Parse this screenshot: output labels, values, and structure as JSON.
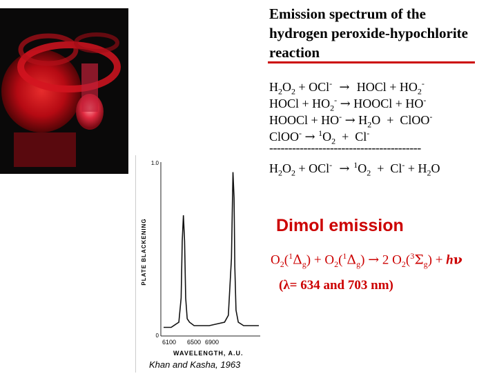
{
  "title": {
    "line1": "Emission spectrum of the",
    "line2": "hydrogen peroxide-hypochlorite",
    "line3": "reaction"
  },
  "reactions": {
    "r1_left": "H2O2 + OCl-",
    "r1_right": "HOCl + HO2-",
    "r2_left": "HOCl + HO2-",
    "r2_right": "HOOCl + HO-",
    "r3_left": "HOOCl + HO-",
    "r3_right": "H2O + ClOO-",
    "r4_left": "ClOO-",
    "r4_right": "1O2 + Cl-",
    "divider": "----------------------------------------",
    "net_left": "H2O2 + OCl-",
    "net_right": "1O2 + Cl- + H2O"
  },
  "dimol": {
    "heading": "Dimol emission",
    "equation": "O2(1Δg) + O2(1Δg) → 2 O2(3Σg) + hν",
    "wavelength": "(λ= 634 and 703 nm)"
  },
  "credit": "Khan and Kasha, 1963",
  "chart_data": {
    "type": "line",
    "xlabel": "WAVELENGTH, A.U.",
    "ylabel": "PLATE BLACKENING",
    "x_ticks": [
      "6100",
      "6500",
      "6900"
    ],
    "y_ticks": [
      "0",
      "1.0"
    ],
    "series": [
      {
        "x": [
          6100,
          6200,
          6300,
          6330,
          6345,
          6360,
          6375,
          6390,
          6410,
          6440,
          6500,
          6600,
          6700,
          6800,
          6900,
          6950,
          6990,
          7010,
          7025,
          7035,
          7050,
          7080,
          7150,
          7250,
          7350
        ],
        "values": [
          0.05,
          0.05,
          0.08,
          0.22,
          0.55,
          0.7,
          0.55,
          0.22,
          0.1,
          0.08,
          0.06,
          0.06,
          0.06,
          0.07,
          0.08,
          0.12,
          0.45,
          0.95,
          0.8,
          0.4,
          0.15,
          0.08,
          0.06,
          0.06,
          0.06
        ]
      }
    ],
    "colors": {
      "line": "#111111"
    }
  },
  "photo": {
    "icon": "red-chemiluminescence-photo",
    "glow_color": "#e8141e"
  }
}
